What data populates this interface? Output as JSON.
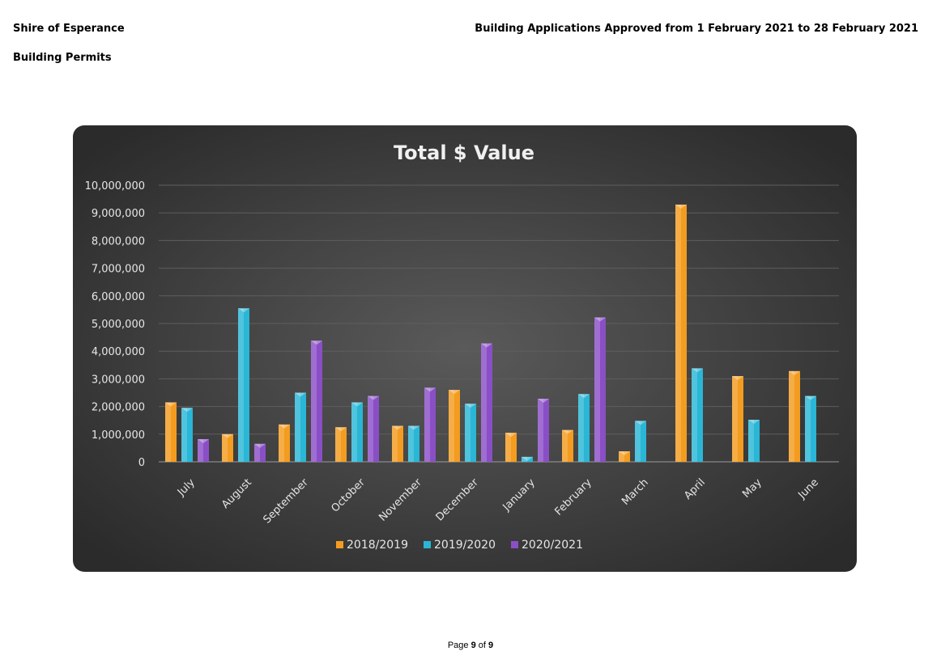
{
  "header": {
    "organization": "Shire of Esperance",
    "section": "Building Permits",
    "report_title": "Building Applications Approved from 1 February 2021 to 28 February 2021"
  },
  "footer": {
    "page_prefix": "Page",
    "page_current": "9",
    "page_of": "of",
    "page_total": "9"
  },
  "colors": {
    "series": [
      "#f39c1f",
      "#2ab6d6",
      "#8a4fc6"
    ],
    "panel": "#3a3a3a",
    "text": "#e6e6e6"
  },
  "chart_data": {
    "type": "bar",
    "title": "Total $ Value",
    "categories": [
      "July",
      "August",
      "September",
      "October",
      "November",
      "December",
      "January",
      "February",
      "March",
      "April",
      "May",
      "June"
    ],
    "series": [
      {
        "name": "2018/2019",
        "values": [
          2150000,
          1000000,
          1350000,
          1250000,
          1300000,
          2600000,
          1050000,
          1150000,
          380000,
          9300000,
          3100000,
          3280000
        ]
      },
      {
        "name": "2019/2020",
        "values": [
          1950000,
          5550000,
          2500000,
          2150000,
          1300000,
          2100000,
          180000,
          2450000,
          1480000,
          3380000,
          1520000,
          2380000
        ]
      },
      {
        "name": "2020/2021",
        "values": [
          820000,
          650000,
          4380000,
          2380000,
          2680000,
          4280000,
          2280000,
          5220000,
          null,
          null,
          null,
          null
        ]
      }
    ],
    "y_ticks": [
      "0",
      "1,000,000",
      "2,000,000",
      "3,000,000",
      "4,000,000",
      "5,000,000",
      "6,000,000",
      "7,000,000",
      "8,000,000",
      "9,000,000",
      "10,000,000"
    ],
    "ylim": [
      0,
      10000000
    ],
    "grid": true,
    "legend_position": "bottom"
  }
}
